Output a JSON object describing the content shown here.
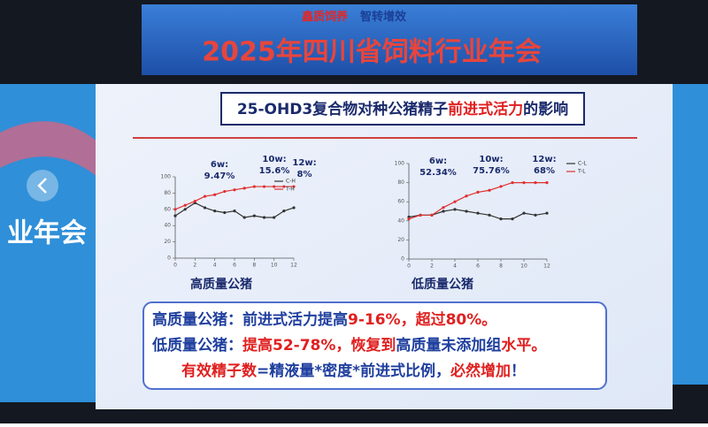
{
  "banner": {
    "slogan": [
      "鑫质饲养",
      "智转增效"
    ],
    "title": "2025年四川省饲料行业年会"
  },
  "side_screen": {
    "text": "业年会"
  },
  "slide": {
    "title_parts": [
      {
        "text": "25-OHD3复合物对种公猪精子",
        "color": "#1a2a6c"
      },
      {
        "text": "前进式活力",
        "color": "#e02020"
      },
      {
        "text": "的影响",
        "color": "#1a2a6c"
      }
    ],
    "summary": [
      [
        {
          "text": "高质量公猪：前进式活力提高",
          "color": "#1f3f9f"
        },
        {
          "text": "9-16%，超过80%。",
          "color": "#e02020"
        }
      ],
      [
        {
          "text": "低质量公猪：",
          "color": "#1f3f9f"
        },
        {
          "text": "提高52-78%，恢复到",
          "color": "#e02020"
        },
        {
          "text": "高质量未添加组",
          "color": "#1f3f9f"
        },
        {
          "text": "水平。",
          "color": "#e02020"
        }
      ],
      [
        {
          "text": "有效精子数",
          "color": "#e02020"
        },
        {
          "text": "=精液量*密度*前进式比例，",
          "color": "#1f3f9f"
        },
        {
          "text": "必然增加",
          "color": "#e02020"
        },
        {
          "text": "！",
          "color": "#1f3f9f"
        }
      ]
    ]
  },
  "chart_data": [
    {
      "type": "line",
      "title": "高质量公猪",
      "x": [
        0,
        1,
        2,
        3,
        4,
        5,
        6,
        7,
        8,
        9,
        10,
        11,
        12
      ],
      "series": [
        {
          "name": "C-H",
          "color": "#333333",
          "values": [
            52,
            60,
            68,
            62,
            58,
            56,
            58,
            50,
            52,
            50,
            50,
            58,
            62
          ]
        },
        {
          "name": "T-H",
          "color": "#e03030",
          "values": [
            60,
            65,
            70,
            76,
            78,
            82,
            84,
            86,
            88,
            88,
            88,
            88,
            88
          ]
        }
      ],
      "annotations": [
        [
          "6w:",
          "9.47%"
        ],
        [
          "10w:",
          "15.6%"
        ],
        [
          "12w:",
          "8%"
        ]
      ],
      "xlim": [
        0,
        12
      ],
      "ylim": [
        0,
        100
      ],
      "xticks": [
        0,
        2,
        4,
        6,
        8,
        10,
        12
      ],
      "yticks": [
        0,
        20,
        40,
        60,
        80,
        100
      ]
    },
    {
      "type": "line",
      "title": "低质量公猪",
      "x": [
        0,
        1,
        2,
        3,
        4,
        5,
        6,
        7,
        8,
        9,
        10,
        11,
        12
      ],
      "series": [
        {
          "name": "C-L",
          "color": "#333333",
          "values": [
            44,
            46,
            46,
            50,
            52,
            50,
            48,
            46,
            42,
            42,
            48,
            46,
            48
          ]
        },
        {
          "name": "T-L",
          "color": "#e03030",
          "values": [
            42,
            46,
            46,
            54,
            60,
            66,
            70,
            72,
            76,
            80,
            80,
            80,
            80
          ]
        }
      ],
      "annotations": [
        [
          "6w:",
          "52.34%"
        ],
        [
          "10w:",
          "75.76%"
        ],
        [
          "12w:",
          "68%"
        ]
      ],
      "xlim": [
        0,
        12
      ],
      "ylim": [
        0,
        100
      ],
      "xticks": [
        0,
        2,
        4,
        6,
        8,
        10,
        12
      ],
      "yticks": [
        0,
        20,
        40,
        60,
        80,
        100
      ]
    }
  ]
}
